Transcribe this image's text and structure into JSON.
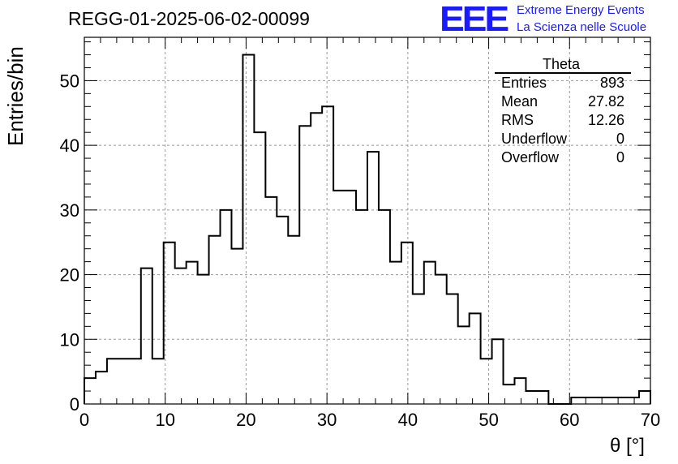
{
  "header": {
    "run_title": "REGG-01-2025-06-02-00099",
    "logo_text": "EEE",
    "logo_line1": "Extreme Energy Events",
    "logo_line2": "La Scienza nelle Scuole"
  },
  "stats": {
    "title": "Theta",
    "rows": [
      {
        "label": "Entries",
        "value": "893"
      },
      {
        "label": "Mean",
        "value": "27.82"
      },
      {
        "label": "RMS",
        "value": "12.26"
      },
      {
        "label": "Underflow",
        "value": "0"
      },
      {
        "label": "Overflow",
        "value": "0"
      }
    ]
  },
  "colors": {
    "line": "#000000",
    "grid": "#999999",
    "logo": "#1a1aff"
  },
  "chart_data": {
    "type": "bar",
    "style": "step-histogram",
    "xlabel": "θ [°]",
    "ylabel": "Entries/bin",
    "xlim": [
      0,
      70
    ],
    "ylim": [
      0,
      56.7
    ],
    "bin_width": 1.4,
    "x_ticks": [
      0,
      10,
      20,
      30,
      40,
      50,
      60,
      70
    ],
    "y_ticks": [
      0,
      10,
      20,
      30,
      40,
      50
    ],
    "grid": true,
    "values": [
      4,
      5,
      7,
      7,
      7,
      21,
      7,
      25,
      21,
      22,
      20,
      26,
      30,
      24,
      54,
      42,
      32,
      29,
      26,
      43,
      45,
      46,
      33,
      33,
      30,
      39,
      30,
      22,
      25,
      17,
      22,
      20,
      17,
      12,
      14,
      7,
      10,
      3,
      4,
      2,
      2,
      0,
      0,
      1,
      1,
      1,
      1,
      1,
      1,
      2
    ]
  }
}
